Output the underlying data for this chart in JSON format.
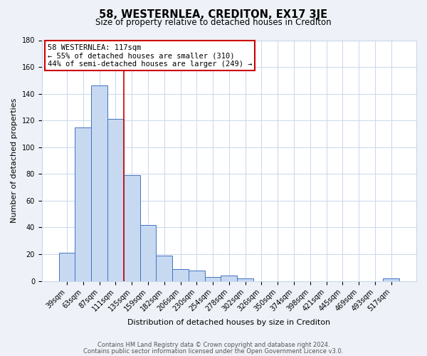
{
  "title": "58, WESTERNLEA, CREDITON, EX17 3JE",
  "subtitle": "Size of property relative to detached houses in Crediton",
  "xlabel": "Distribution of detached houses by size in Crediton",
  "ylabel": "Number of detached properties",
  "bar_labels": [
    "39sqm",
    "63sqm",
    "87sqm",
    "111sqm",
    "135sqm",
    "159sqm",
    "182sqm",
    "206sqm",
    "230sqm",
    "254sqm",
    "278sqm",
    "302sqm",
    "326sqm",
    "350sqm",
    "374sqm",
    "398sqm",
    "421sqm",
    "445sqm",
    "469sqm",
    "493sqm",
    "517sqm"
  ],
  "bar_values": [
    21,
    115,
    146,
    121,
    79,
    42,
    19,
    9,
    8,
    3,
    4,
    2,
    0,
    0,
    0,
    0,
    0,
    0,
    0,
    0,
    2
  ],
  "bar_color": "#c6d9f0",
  "bar_edge_color": "#4472c4",
  "vline_x_index": 3,
  "vline_color": "#cc0000",
  "ylim": [
    0,
    180
  ],
  "yticks": [
    0,
    20,
    40,
    60,
    80,
    100,
    120,
    140,
    160,
    180
  ],
  "annotation_line1": "58 WESTERNLEA: 117sqm",
  "annotation_line2": "← 55% of detached houses are smaller (310)",
  "annotation_line3": "44% of semi-detached houses are larger (249) →",
  "footer_line1": "Contains HM Land Registry data © Crown copyright and database right 2024.",
  "footer_line2": "Contains public sector information licensed under the Open Government Licence v3.0.",
  "bg_color": "#eef2f8",
  "plot_bg_color": "#ffffff",
  "grid_color": "#c8d8ec",
  "title_fontsize": 10.5,
  "subtitle_fontsize": 8.5,
  "tick_fontsize": 7,
  "label_fontsize": 8,
  "annotation_fontsize": 7.5,
  "footer_fontsize": 6
}
